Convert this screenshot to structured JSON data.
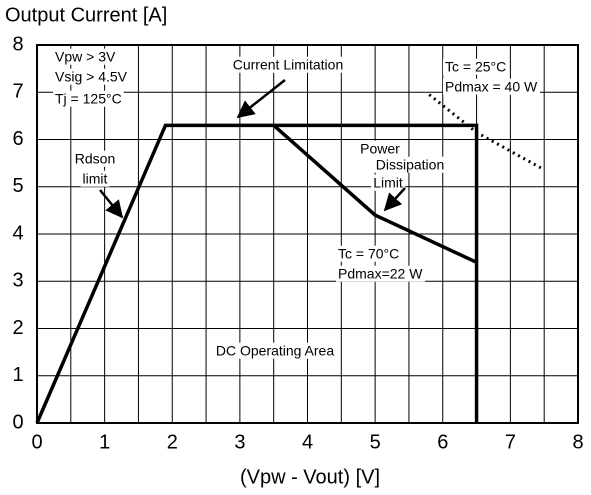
{
  "chart_data": {
    "type": "line",
    "title": "Output Current [A]",
    "xlabel": "(Vpw - Vout) [V]",
    "xlim": [
      0,
      8
    ],
    "ylim": [
      0,
      8
    ],
    "xticks": [
      0,
      1,
      2,
      3,
      4,
      5,
      6,
      7,
      8
    ],
    "yticks": [
      0,
      1,
      2,
      3,
      4,
      5,
      6,
      7,
      8
    ],
    "grid": true,
    "series": [
      {
        "color": "#000000",
        "style": "solid",
        "x": [
          0,
          1.9,
          6.5,
          6.5
        ],
        "values": [
          0,
          6.3,
          6.3,
          0
        ]
      },
      {
        "color": "#000000",
        "style": "solid",
        "x": [
          3.5,
          5,
          6.5
        ],
        "values": [
          6.3,
          4.4,
          3.4
        ]
      },
      {
        "color": "#000000",
        "style": "dotted",
        "x": [
          5.8,
          6.5,
          7.45
        ],
        "values": [
          6.95,
          6.15,
          5.4
        ]
      }
    ],
    "annotations": [
      "Vpw > 3V",
      "Vsig > 4.5V",
      "Tj = 125°C",
      "Current Limitation",
      "Tc = 25°C",
      "Pdmax = 40 W",
      "Rdson",
      "limit",
      "Power",
      "Dissipation",
      "Limit",
      "Tc = 70°C",
      "Pdmax=22 W",
      "DC Operating Area"
    ]
  }
}
